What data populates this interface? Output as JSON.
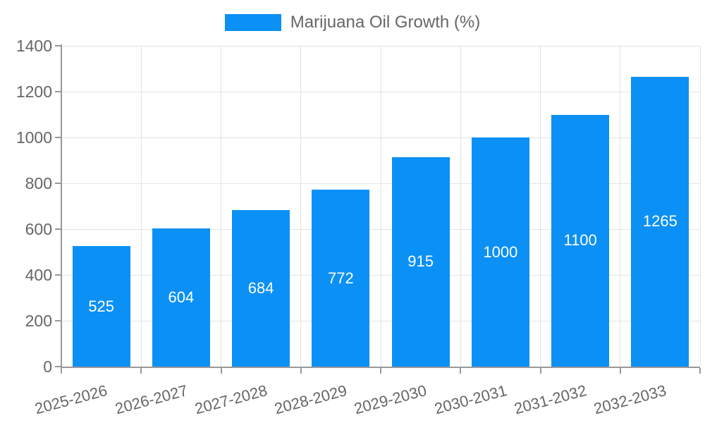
{
  "chart_data": {
    "type": "bar",
    "title": "",
    "legend": "Marijuana Oil Growth (%)",
    "legend_position": "top",
    "categories": [
      "2025-2026",
      "2026-2027",
      "2027-2028",
      "2028-2029",
      "2029-2030",
      "2030-2031",
      "2031-2032",
      "2032-2033"
    ],
    "values": [
      525,
      604,
      684,
      772,
      915,
      1000,
      1100,
      1265
    ],
    "xlabel": "",
    "ylabel": "",
    "ylim": [
      0,
      1400
    ],
    "yticks": [
      0,
      200,
      400,
      600,
      800,
      1000,
      1200,
      1400
    ],
    "grid": true,
    "value_labels_shown": true,
    "colors": {
      "bar": "#0b90f6",
      "value_label": "#ffffff",
      "axis": "#999999",
      "grid": "#e3e3e3",
      "text": "#666666"
    }
  }
}
